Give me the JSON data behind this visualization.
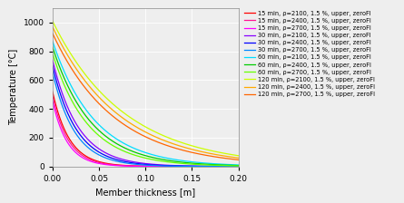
{
  "title": "",
  "xlabel": "Member thickness [m]",
  "ylabel": "Temperature [°C]",
  "xlim": [
    0,
    0.2
  ],
  "ylim": [
    0,
    1100
  ],
  "yticks": [
    0,
    200,
    400,
    600,
    800,
    1000
  ],
  "xticks": [
    0,
    0.05,
    0.1,
    0.15,
    0.2
  ],
  "curves": [
    {
      "label": "15 min, ρ=2100, 1.5 %, upper, zeroFl",
      "color": "#ff0000",
      "T0": 520,
      "k": 55
    },
    {
      "label": "15 min, ρ=2400, 1.5 %, upper, zeroFl",
      "color": "#ff1493",
      "T0": 490,
      "k": 58
    },
    {
      "label": "15 min, ρ=2700, 1.5 %, upper, zeroFl",
      "color": "#ff00ff",
      "T0": 455,
      "k": 62
    },
    {
      "label": "30 min, ρ=2100, 1.5 %, upper, zeroFl",
      "color": "#8800ff",
      "T0": 740,
      "k": 36
    },
    {
      "label": "30 min, ρ=2400, 1.5 %, upper, zeroFl",
      "color": "#0000ff",
      "T0": 700,
      "k": 39
    },
    {
      "label": "30 min, ρ=2700, 1.5 %, upper, zeroFl",
      "color": "#0088ff",
      "T0": 655,
      "k": 42
    },
    {
      "label": "60 min, ρ=2100, 1.5 %, upper, zeroFl",
      "color": "#00ddff",
      "T0": 870,
      "k": 22
    },
    {
      "label": "60 min, ρ=2400, 1.5 %, upper, zeroFl",
      "color": "#00cc00",
      "T0": 830,
      "k": 24
    },
    {
      "label": "60 min, ρ=2700, 1.5 %, upper, zeroFl",
      "color": "#66ff00",
      "T0": 785,
      "k": 26
    },
    {
      "label": "120 min, ρ=2100, 1.5 %, upper, zeroFl",
      "color": "#ccff00",
      "T0": 1010,
      "k": 13
    },
    {
      "label": "120 min, ρ=2400, 1.5 %, upper, zeroFl",
      "color": "#ffaa00",
      "T0": 970,
      "k": 14
    },
    {
      "label": "120 min, ρ=2700, 1.5 %, upper, zeroFl",
      "color": "#ff6600",
      "T0": 925,
      "k": 15
    }
  ],
  "figsize": [
    4.45,
    2.24
  ],
  "dpi": 100,
  "legend_fontsize": 4.8,
  "axis_fontsize": 7,
  "tick_fontsize": 6.5,
  "background_color": "#eeeeee"
}
